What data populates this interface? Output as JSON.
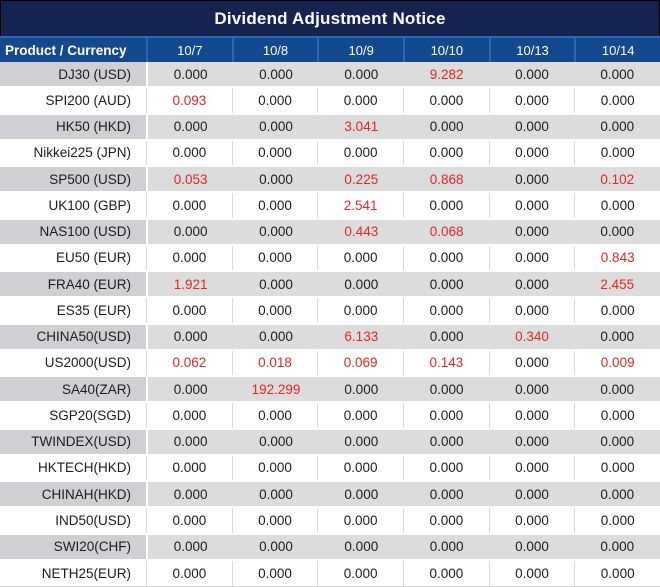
{
  "title": "Dividend Adjustment Notice",
  "columns": [
    "Product / Currency",
    "10/7",
    "10/8",
    "10/9",
    "10/10",
    "10/13",
    "10/14"
  ],
  "rows": [
    {
      "label": "DJ30 (USD)",
      "values": [
        "0.000",
        "0.000",
        "0.000",
        "9.282",
        "0.000",
        "0.000"
      ],
      "red": [
        3
      ]
    },
    {
      "label": "SPI200 (AUD)",
      "values": [
        "0.093",
        "0.000",
        "0.000",
        "0.000",
        "0.000",
        "0.000"
      ],
      "red": [
        0
      ]
    },
    {
      "label": "HK50 (HKD)",
      "values": [
        "0.000",
        "0.000",
        "3.041",
        "0.000",
        "0.000",
        "0.000"
      ],
      "red": [
        2
      ]
    },
    {
      "label": "Nikkei225 (JPN)",
      "values": [
        "0.000",
        "0.000",
        "0.000",
        "0.000",
        "0.000",
        "0.000"
      ],
      "red": []
    },
    {
      "label": "SP500 (USD)",
      "values": [
        "0.053",
        "0.000",
        "0.225",
        "0.868",
        "0.000",
        "0.102"
      ],
      "red": [
        0,
        2,
        3,
        5
      ]
    },
    {
      "label": "UK100 (GBP)",
      "values": [
        "0.000",
        "0.000",
        "2.541",
        "0.000",
        "0.000",
        "0.000"
      ],
      "red": [
        2
      ]
    },
    {
      "label": "NAS100 (USD)",
      "values": [
        "0.000",
        "0.000",
        "0.443",
        "0.068",
        "0.000",
        "0.000"
      ],
      "red": [
        2,
        3
      ]
    },
    {
      "label": "EU50 (EUR)",
      "values": [
        "0.000",
        "0.000",
        "0.000",
        "0.000",
        "0.000",
        "0.843"
      ],
      "red": [
        5
      ]
    },
    {
      "label": "FRA40 (EUR)",
      "values": [
        "1.921",
        "0.000",
        "0.000",
        "0.000",
        "0.000",
        "2.455"
      ],
      "red": [
        0,
        5
      ]
    },
    {
      "label": "ES35 (EUR)",
      "values": [
        "0.000",
        "0.000",
        "0.000",
        "0.000",
        "0.000",
        "0.000"
      ],
      "red": []
    },
    {
      "label": "CHINA50(USD)",
      "values": [
        "0.000",
        "0.000",
        "6.133",
        "0.000",
        "0.340",
        "0.000"
      ],
      "red": [
        2,
        4
      ]
    },
    {
      "label": "US2000(USD)",
      "values": [
        "0.062",
        "0.018",
        "0.069",
        "0.143",
        "0.000",
        "0.009"
      ],
      "red": [
        0,
        1,
        2,
        3,
        5
      ]
    },
    {
      "label": "SA40(ZAR)",
      "values": [
        "0.000",
        "192.299",
        "0.000",
        "0.000",
        "0.000",
        "0.000"
      ],
      "red": [
        1
      ]
    },
    {
      "label": "SGP20(SGD)",
      "values": [
        "0.000",
        "0.000",
        "0.000",
        "0.000",
        "0.000",
        "0.000"
      ],
      "red": []
    },
    {
      "label": "TWINDEX(USD)",
      "values": [
        "0.000",
        "0.000",
        "0.000",
        "0.000",
        "0.000",
        "0.000"
      ],
      "red": []
    },
    {
      "label": "HKTECH(HKD)",
      "values": [
        "0.000",
        "0.000",
        "0.000",
        "0.000",
        "0.000",
        "0.000"
      ],
      "red": []
    },
    {
      "label": "CHINAH(HKD)",
      "values": [
        "0.000",
        "0.000",
        "0.000",
        "0.000",
        "0.000",
        "0.000"
      ],
      "red": []
    },
    {
      "label": "IND50(USD)",
      "values": [
        "0.000",
        "0.000",
        "0.000",
        "0.000",
        "0.000",
        "0.000"
      ],
      "red": []
    },
    {
      "label": "SWI20(CHF)",
      "values": [
        "0.000",
        "0.000",
        "0.000",
        "0.000",
        "0.000",
        "0.000"
      ],
      "red": []
    },
    {
      "label": "NETH25(EUR)",
      "values": [
        "0.000",
        "0.000",
        "0.000",
        "0.000",
        "0.000",
        "0.000"
      ],
      "red": []
    }
  ],
  "colors": {
    "title_bg": "#152350",
    "header_bg": "#15498f",
    "header_border": "#2a67b2",
    "alt_label_bg": "#ced0d3",
    "alt_value_bg": "#dcdcdc",
    "value_text": "#1c1c1c",
    "highlight_red": "#e42525",
    "grid": "#d9d9d9"
  }
}
